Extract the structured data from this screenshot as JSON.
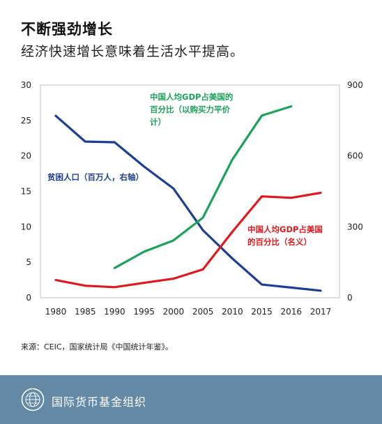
{
  "header": {
    "title": "不断强劲增长",
    "subtitle": "经济快速增长意味着生活水平提高。"
  },
  "source": "来源：CEIC，国家统计局《中国统计年鉴》。",
  "footer": {
    "org": "国际货币基金组织"
  },
  "colors": {
    "blue": "#1c3f96",
    "green": "#1aa35a",
    "red": "#e0191e",
    "footer": "#6389a7"
  },
  "chart_data": {
    "type": "line",
    "categories": [
      "1980",
      "1985",
      "1990",
      "1995",
      "2000",
      "2005",
      "2010",
      "2015",
      "2016",
      "2017"
    ],
    "y_left": {
      "ticks": [
        "0",
        "5",
        "10",
        "15",
        "20",
        "25",
        "30"
      ],
      "range": [
        0,
        30
      ]
    },
    "y_right": {
      "ticks": [
        "0",
        "300",
        "600",
        "900"
      ],
      "range": [
        0,
        900
      ]
    },
    "grid": false,
    "series": [
      {
        "name": "贫困人口（百万人，右轴）",
        "label_lines": [
          "贫困人口（百万人，右轴）"
        ],
        "axis": "right",
        "color": "#1c3f96",
        "values": [
          770,
          661,
          658,
          555,
          462,
          286,
          166,
          56,
          43,
          30
        ]
      },
      {
        "name": "中国人均GDP占美国的百分比（以购买力平价计）",
        "label_lines": [
          "中国人均GDP占美国的",
          "百分比（以购买力平价",
          "计）"
        ],
        "axis": "left",
        "color": "#1aa35a",
        "values": [
          null,
          null,
          4.2,
          6.5,
          8.1,
          11.3,
          19.5,
          25.7,
          27.0,
          null
        ]
      },
      {
        "name": "中国人均GDP占美国的百分比（名义）",
        "label_lines": [
          "中国人均GDP占美国",
          "的百分比（名义）"
        ],
        "axis": "left",
        "color": "#e0191e",
        "values": [
          2.5,
          1.7,
          1.5,
          2.1,
          2.7,
          4.0,
          9.3,
          14.3,
          14.1,
          14.8
        ]
      }
    ]
  }
}
